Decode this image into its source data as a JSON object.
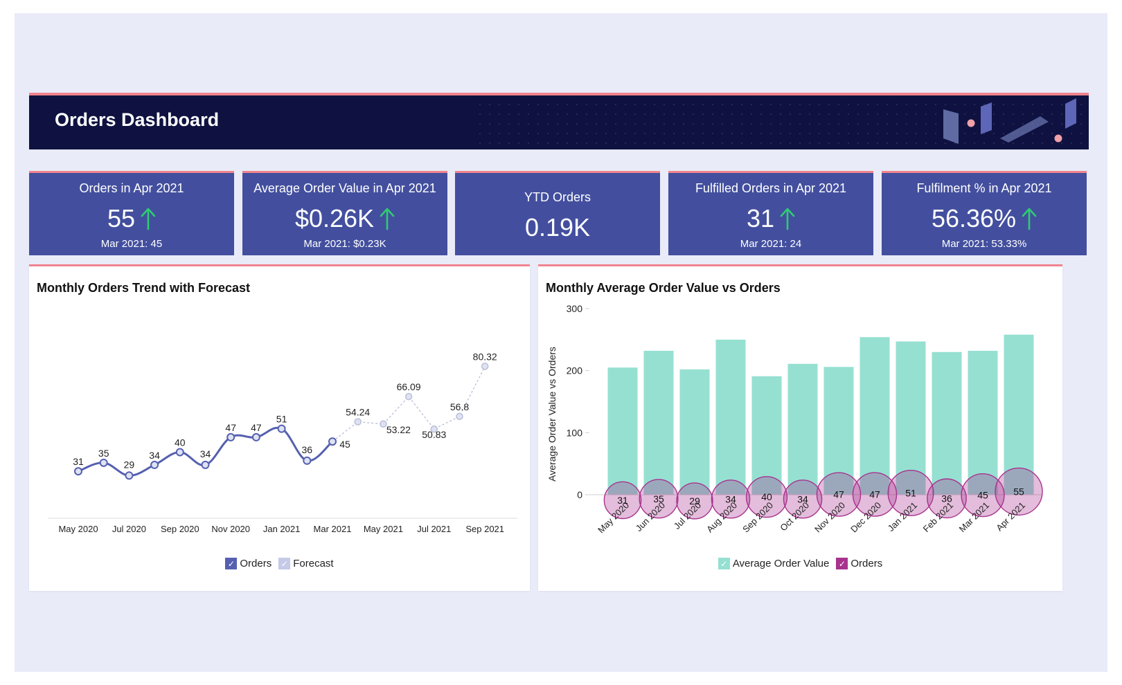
{
  "header": {
    "title": "Orders Dashboard"
  },
  "kpis": [
    {
      "title": "Orders in Apr 2021",
      "value": "55",
      "trend": "up",
      "compare": "Mar 2021: 45"
    },
    {
      "title": "Average Order Value in Apr 2021",
      "value": "$0.26K",
      "trend": "up",
      "compare": "Mar 2021: $0.23K"
    },
    {
      "title": "YTD Orders",
      "value": "0.19K"
    },
    {
      "title": "Fulfilled Orders in Apr 2021",
      "value": "31",
      "trend": "up",
      "compare": "Mar 2021: 24"
    },
    {
      "title": "Fulfilment % in Apr 2021",
      "value": "56.36%",
      "trend": "up",
      "compare": "Mar 2021: 53.33%"
    }
  ],
  "colors": {
    "header_bg": "#0f1240",
    "accent_pink": "#f0848d",
    "kpi_bg": "#434f9e",
    "trend_up": "#2ecc71",
    "orders_line": "#5560b0",
    "forecast": "#c5cae9",
    "avg_bar": "#96e0d2",
    "orders_bubble": "#a8328e"
  },
  "chart_data": [
    {
      "type": "line",
      "title": "Monthly Orders Trend with Forecast",
      "x": [
        "May 2020",
        "Jun 2020",
        "Jul 2020",
        "Aug 2020",
        "Sep 2020",
        "Oct 2020",
        "Nov 2020",
        "Dec 2020",
        "Jan 2021",
        "Feb 2021",
        "Mar 2021",
        "Apr 2021",
        "May 2021",
        "Jun 2021",
        "Jul 2021",
        "Aug 2021",
        "Sep 2021"
      ],
      "x_tick_labels": [
        "May 2020",
        "Jul 2020",
        "Sep 2020",
        "Nov 2020",
        "Jan 2021",
        "Mar 2021",
        "May 2021",
        "Jul 2021",
        "Sep 2021"
      ],
      "series": [
        {
          "name": "Orders",
          "x": [
            "May 2020",
            "Jun 2020",
            "Jul 2020",
            "Aug 2020",
            "Sep 2020",
            "Oct 2020",
            "Nov 2020",
            "Dec 2020",
            "Jan 2021",
            "Feb 2021",
            "Mar 2021"
          ],
          "values": [
            31,
            35,
            29,
            34,
            40,
            34,
            47,
            47,
            51,
            36,
            45
          ]
        },
        {
          "name": "Forecast",
          "x": [
            "Mar 2021",
            "Apr 2021",
            "May 2021",
            "Jun 2021",
            "Jul 2021",
            "Aug 2021",
            "Sep 2021"
          ],
          "values": [
            45,
            54.24,
            53.22,
            66.09,
            50.83,
            56.8,
            80.32
          ]
        }
      ],
      "y_range": [
        20,
        85
      ],
      "grid": false,
      "legend": "bottom"
    },
    {
      "type": "bar",
      "title": "Monthly Average Order Value vs Orders",
      "ylabel": "Average Order Value vs Orders",
      "categories": [
        "May 2020",
        "Jun 2020",
        "Jul 2020",
        "Aug 2020",
        "Sep 2020",
        "Oct 2020",
        "Nov 2020",
        "Dec 2020",
        "Jan 2021",
        "Feb 2021",
        "Mar 2021",
        "Apr 2021"
      ],
      "series": [
        {
          "name": "Average Order Value",
          "type": "bar",
          "values": [
            205,
            232,
            202,
            250,
            191,
            211,
            206,
            254,
            247,
            230,
            232,
            258
          ]
        },
        {
          "name": "Orders",
          "type": "bubble",
          "values": [
            31,
            35,
            29,
            34,
            40,
            34,
            47,
            47,
            51,
            36,
            45,
            55
          ]
        }
      ],
      "ylim": [
        0,
        300
      ],
      "y_ticks": [
        0,
        100,
        200,
        300
      ],
      "grid": false,
      "legend": "bottom"
    }
  ]
}
